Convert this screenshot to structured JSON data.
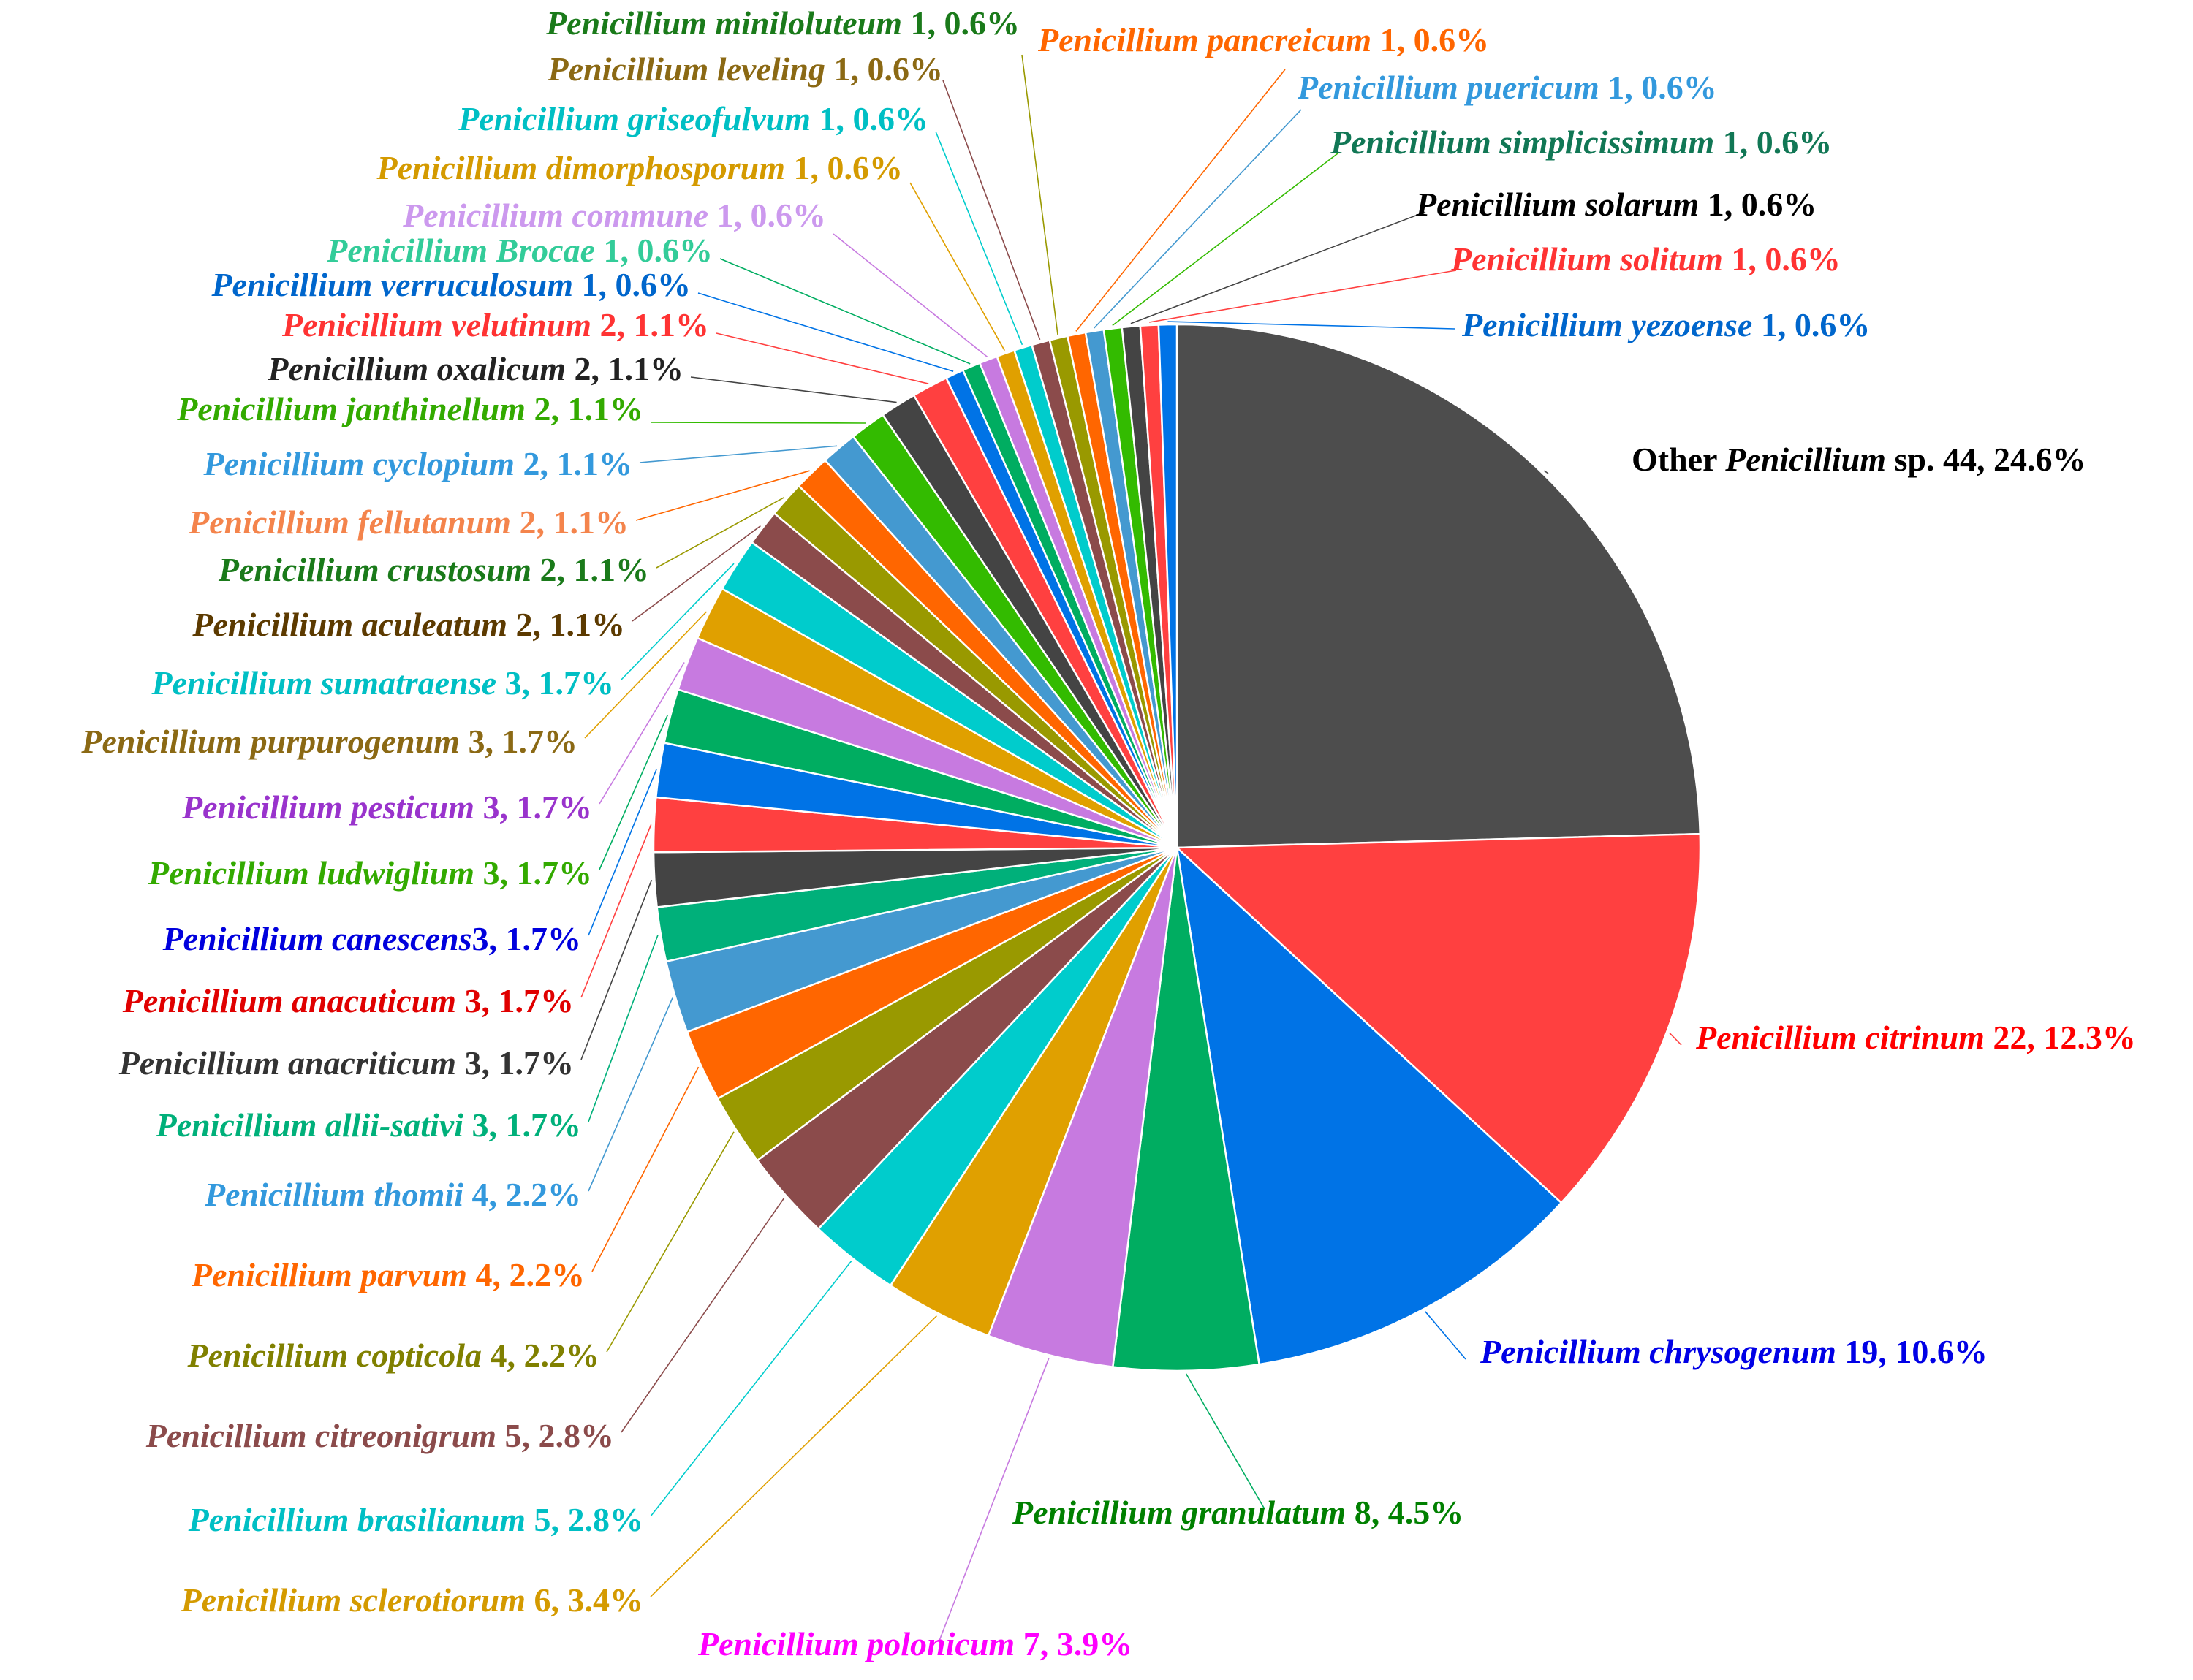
{
  "chart_data": {
    "type": "pie",
    "start": "12 o'clock",
    "direction": "clockwise",
    "slices": [
      {
        "prefix": "Other ",
        "name": "Penicillium",
        "suffix": " sp.",
        "value": 44,
        "percent": "24.6%",
        "color": "#4d4d4d",
        "text_color": "#000000"
      },
      {
        "name": "Penicillium citrinum",
        "value": 22,
        "percent": "12.3%",
        "color": "#ff4040",
        "text_color": "#ff0000"
      },
      {
        "name": "Penicillium chrysogenum",
        "value": 19,
        "percent": "10.6%",
        "color": "#0073e6",
        "text_color": "#0000e6"
      },
      {
        "name": "Penicillium granulatum",
        "value": 8,
        "percent": "4.5%",
        "color": "#00ad61",
        "text_color": "#008000"
      },
      {
        "name": "Penicillium polonicum",
        "value": 7,
        "percent": "3.9%",
        "color": "#c77ae0",
        "text_color": "#ff00ff"
      },
      {
        "name": "Penicillium sclerotiorum",
        "value": 6,
        "percent": "3.4%",
        "color": "#e0a000",
        "text_color": "#d49a00"
      },
      {
        "name": "Penicillium brasilianum",
        "value": 5,
        "percent": "2.8%",
        "color": "#00cccc",
        "text_color": "#00bfc4"
      },
      {
        "name": "Penicillium citreonigrum",
        "value": 5,
        "percent": "2.8%",
        "color": "#8b4b4b",
        "text_color": "#8b4b4b"
      },
      {
        "name": "Penicillium copticola",
        "value": 4,
        "percent": "2.2%",
        "color": "#999900",
        "text_color": "#808000"
      },
      {
        "name": "Penicillium parvum",
        "value": 4,
        "percent": "2.2%",
        "color": "#ff6600",
        "text_color": "#ff6600"
      },
      {
        "name": "Penicillium thomii",
        "value": 4,
        "percent": "2.2%",
        "color": "#4499d0",
        "text_color": "#3399dd"
      },
      {
        "name": "Penicillium allii-sativi",
        "value": 3,
        "percent": "1.7%",
        "color": "#00b07a",
        "text_color": "#00b07a"
      },
      {
        "name": "Penicillium anacriticum",
        "value": 3,
        "percent": "1.7%",
        "color": "#444444",
        "text_color": "#333333"
      },
      {
        "name": "Penicillium anacuticum",
        "value": 3,
        "percent": "1.7%",
        "color": "#ff4040",
        "text_color": "#e00000"
      },
      {
        "name": "Penicillium canescens",
        "joiner": "",
        "value": 3,
        "percent": "1.7%",
        "color": "#0073e6",
        "text_color": "#0000dd"
      },
      {
        "name": "Penicillium ludwiglium",
        "value": 3,
        "percent": "1.7%",
        "color": "#00ad61",
        "text_color": "#33aa00"
      },
      {
        "name": "Penicillium pesticum",
        "value": 3,
        "percent": "1.7%",
        "color": "#c77ae0",
        "text_color": "#9933cc"
      },
      {
        "name": "Penicillium purpurogenum",
        "value": 3,
        "percent": "1.7%",
        "color": "#e0a000",
        "text_color": "#8b6914"
      },
      {
        "name": "Penicillium sumatraense",
        "value": 3,
        "percent": "1.7%",
        "color": "#00cccc",
        "text_color": "#00bfc4"
      },
      {
        "name": "Penicillium aculeatum",
        "value": 2,
        "percent": "1.1%",
        "color": "#8b4b4b",
        "text_color": "#5c3a00"
      },
      {
        "name": "Penicillium crustosum",
        "value": 2,
        "percent": "1.1%",
        "color": "#999900",
        "text_color": "#1a7a1a"
      },
      {
        "name": "Penicillium fellutanum",
        "value": 2,
        "percent": "1.1%",
        "color": "#ff6600",
        "text_color": "#f4844c"
      },
      {
        "name": "Penicillium cyclopium",
        "value": 2,
        "percent": "1.1%",
        "color": "#4499d0",
        "text_color": "#3399dd"
      },
      {
        "name": "Penicillium janthinellum",
        "value": 2,
        "percent": "1.1%",
        "color": "#33bb00",
        "text_color": "#33aa00"
      },
      {
        "name": "Penicillium oxalicum",
        "value": 2,
        "percent": "1.1%",
        "color": "#444444",
        "text_color": "#222222"
      },
      {
        "name": "Penicillium velutinum",
        "value": 2,
        "percent": "1.1%",
        "color": "#ff4040",
        "text_color": "#ff3333"
      },
      {
        "name": "Penicillium verruculosum",
        "value": 1,
        "percent": "0.6%",
        "color": "#0073e6",
        "text_color": "#0066cc"
      },
      {
        "name": "Penicillium Brocae",
        "value": 1,
        "percent": "0.6%",
        "color": "#00ad61",
        "text_color": "#33cc99"
      },
      {
        "name": "Penicillium commune",
        "value": 1,
        "percent": "0.6%",
        "color": "#c77ae0",
        "text_color": "#cc99ee"
      },
      {
        "name": "Penicillium dimorphosporum",
        "value": 1,
        "percent": "0.6%",
        "color": "#e0a000",
        "text_color": "#d49a00"
      },
      {
        "name": "Penicillium griseofulvum",
        "value": 1,
        "percent": "0.6%",
        "color": "#00cccc",
        "text_color": "#00bfc4"
      },
      {
        "name": "Penicillium leveling",
        "value": 1,
        "percent": "0.6%",
        "color": "#8b4b4b",
        "text_color": "#8b6914"
      },
      {
        "name": "Penicillium miniloluteum",
        "value": 1,
        "percent": "0.6%",
        "color": "#999900",
        "text_color": "#1a7a1a"
      },
      {
        "name": "Penicillium pancreicum",
        "value": 1,
        "percent": "0.6%",
        "color": "#ff6600",
        "text_color": "#ff6600"
      },
      {
        "name": "Penicillium puericum",
        "value": 1,
        "percent": "0.6%",
        "color": "#4499d0",
        "text_color": "#3399dd"
      },
      {
        "name": "Penicillium simplicissimum",
        "value": 1,
        "percent": "0.6%",
        "color": "#33bb00",
        "text_color": "#117755"
      },
      {
        "name": "Penicillium solarum",
        "value": 1,
        "percent": "0.6%",
        "color": "#444444",
        "text_color": "#000000"
      },
      {
        "name": "Penicillium solitum",
        "value": 1,
        "percent": "0.6%",
        "color": "#ff4040",
        "text_color": "#ff3333"
      },
      {
        "name": "Penicillium yezoense",
        "value": 1,
        "percent": "0.6%",
        "color": "#0073e6",
        "text_color": "#0066cc"
      }
    ]
  }
}
